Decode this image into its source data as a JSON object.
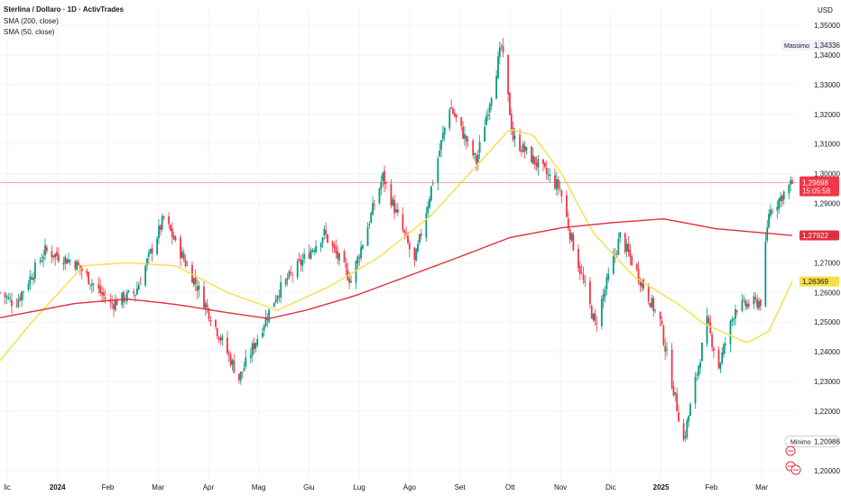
{
  "header": {
    "symbol_line": "Sterlina / Dollaro · 1D · ActivTrades",
    "indicator_1": "SMA (200, close)",
    "indicator_2": "SMA (50, close)"
  },
  "price_axis": {
    "currency": "USD",
    "ticks": [
      "1,35000",
      "1,34000",
      "1,33000",
      "1,32000",
      "1,31000",
      "1,30000",
      "1,29000",
      "1,27000",
      "1,26000",
      "1,25000",
      "1,24000",
      "1,23000",
      "1,22000",
      "1,20000"
    ]
  },
  "labels": {
    "max_label": "Massimo",
    "max_value": "1,34336",
    "min_label": "Minimo",
    "min_value": "1,20986",
    "last_price": "1,29698",
    "countdown": "15:05:58",
    "sma200_value": "1,27922",
    "sma50_value": "1,26369"
  },
  "time_axis": {
    "labels": [
      "lic",
      "2024",
      "Feb",
      "Mar",
      "Apr",
      "Mag",
      "Giu",
      "Lug",
      "Ago",
      "Set",
      "Ott",
      "Nov",
      "Dic",
      "2025",
      "Feb",
      "Mar"
    ],
    "bold": [
      "2024",
      "2025"
    ]
  },
  "colors": {
    "up": "#089981",
    "down": "#f23645",
    "sma200": "#e0303f",
    "sma50": "#f4df46",
    "grid": "#f0f3fa",
    "last_line": "#f23645"
  },
  "chart_data": {
    "type": "candlestick",
    "title": "Sterlina / Dollaro · 1D · ActivTrades",
    "ylim": [
      1.1975,
      1.3555
    ],
    "x_range": [
      "2023-12-01",
      "2025-03-19"
    ],
    "high": 1.34336,
    "low": 1.20986,
    "last": 1.29698,
    "series": [
      {
        "name": "SMA (200, close)",
        "points": [
          [
            "2023-12-01",
            1.2515
          ],
          [
            "2024-01-15",
            1.2563
          ],
          [
            "2024-02-15",
            1.2578
          ],
          [
            "2024-03-15",
            1.256
          ],
          [
            "2024-04-15",
            1.2532
          ],
          [
            "2024-05-10",
            1.2512
          ],
          [
            "2024-06-01",
            1.254
          ],
          [
            "2024-07-01",
            1.259
          ],
          [
            "2024-08-01",
            1.2655
          ],
          [
            "2024-09-01",
            1.272
          ],
          [
            "2024-10-01",
            1.2785
          ],
          [
            "2024-11-01",
            1.2818
          ],
          [
            "2024-12-01",
            1.2835
          ],
          [
            "2025-01-01",
            1.2848
          ],
          [
            "2025-02-01",
            1.2815
          ],
          [
            "2025-03-19",
            1.2792
          ]
        ]
      },
      {
        "name": "SMA (50, close)",
        "points": [
          [
            "2023-12-01",
            1.237
          ],
          [
            "2023-12-20",
            1.25
          ],
          [
            "2024-01-20",
            1.269
          ],
          [
            "2024-02-15",
            1.27
          ],
          [
            "2024-03-15",
            1.269
          ],
          [
            "2024-04-15",
            1.26
          ],
          [
            "2024-05-15",
            1.254
          ],
          [
            "2024-06-15",
            1.262
          ],
          [
            "2024-07-15",
            1.272
          ],
          [
            "2024-08-15",
            1.286
          ],
          [
            "2024-09-10",
            1.302
          ],
          [
            "2024-10-01",
            1.315
          ],
          [
            "2024-10-15",
            1.313
          ],
          [
            "2024-11-01",
            1.3
          ],
          [
            "2024-11-20",
            1.28
          ],
          [
            "2024-12-15",
            1.265
          ],
          [
            "2025-01-10",
            1.256
          ],
          [
            "2025-01-25",
            1.2495
          ],
          [
            "2025-02-20",
            1.243
          ],
          [
            "2025-03-05",
            1.247
          ],
          [
            "2025-03-19",
            1.2637
          ]
        ]
      },
      {
        "name": "close",
        "points": [
          [
            "2023-12-01",
            1.26
          ],
          [
            "2023-12-10",
            1.256
          ],
          [
            "2023-12-28",
            1.274
          ],
          [
            "2024-01-15",
            1.27
          ],
          [
            "2024-02-05",
            1.256
          ],
          [
            "2024-02-20",
            1.26
          ],
          [
            "2024-03-08",
            1.285
          ],
          [
            "2024-03-28",
            1.262
          ],
          [
            "2024-04-22",
            1.231
          ],
          [
            "2024-05-15",
            1.26
          ],
          [
            "2024-06-12",
            1.28
          ],
          [
            "2024-06-28",
            1.264
          ],
          [
            "2024-07-17",
            1.299
          ],
          [
            "2024-08-05",
            1.27
          ],
          [
            "2024-08-26",
            1.323
          ],
          [
            "2024-09-11",
            1.304
          ],
          [
            "2024-09-26",
            1.343
          ],
          [
            "2024-10-03",
            1.312
          ],
          [
            "2024-10-31",
            1.295
          ],
          [
            "2024-11-06",
            1.28
          ],
          [
            "2024-11-21",
            1.249
          ],
          [
            "2024-12-06",
            1.279
          ],
          [
            "2024-12-30",
            1.25
          ],
          [
            "2025-01-13",
            1.21
          ],
          [
            "2025-01-27",
            1.25
          ],
          [
            "2025-02-03",
            1.235
          ],
          [
            "2025-02-13",
            1.255
          ],
          [
            "2025-02-28",
            1.257
          ],
          [
            "2025-03-05",
            1.287
          ],
          [
            "2025-03-19",
            1.297
          ]
        ]
      }
    ]
  }
}
